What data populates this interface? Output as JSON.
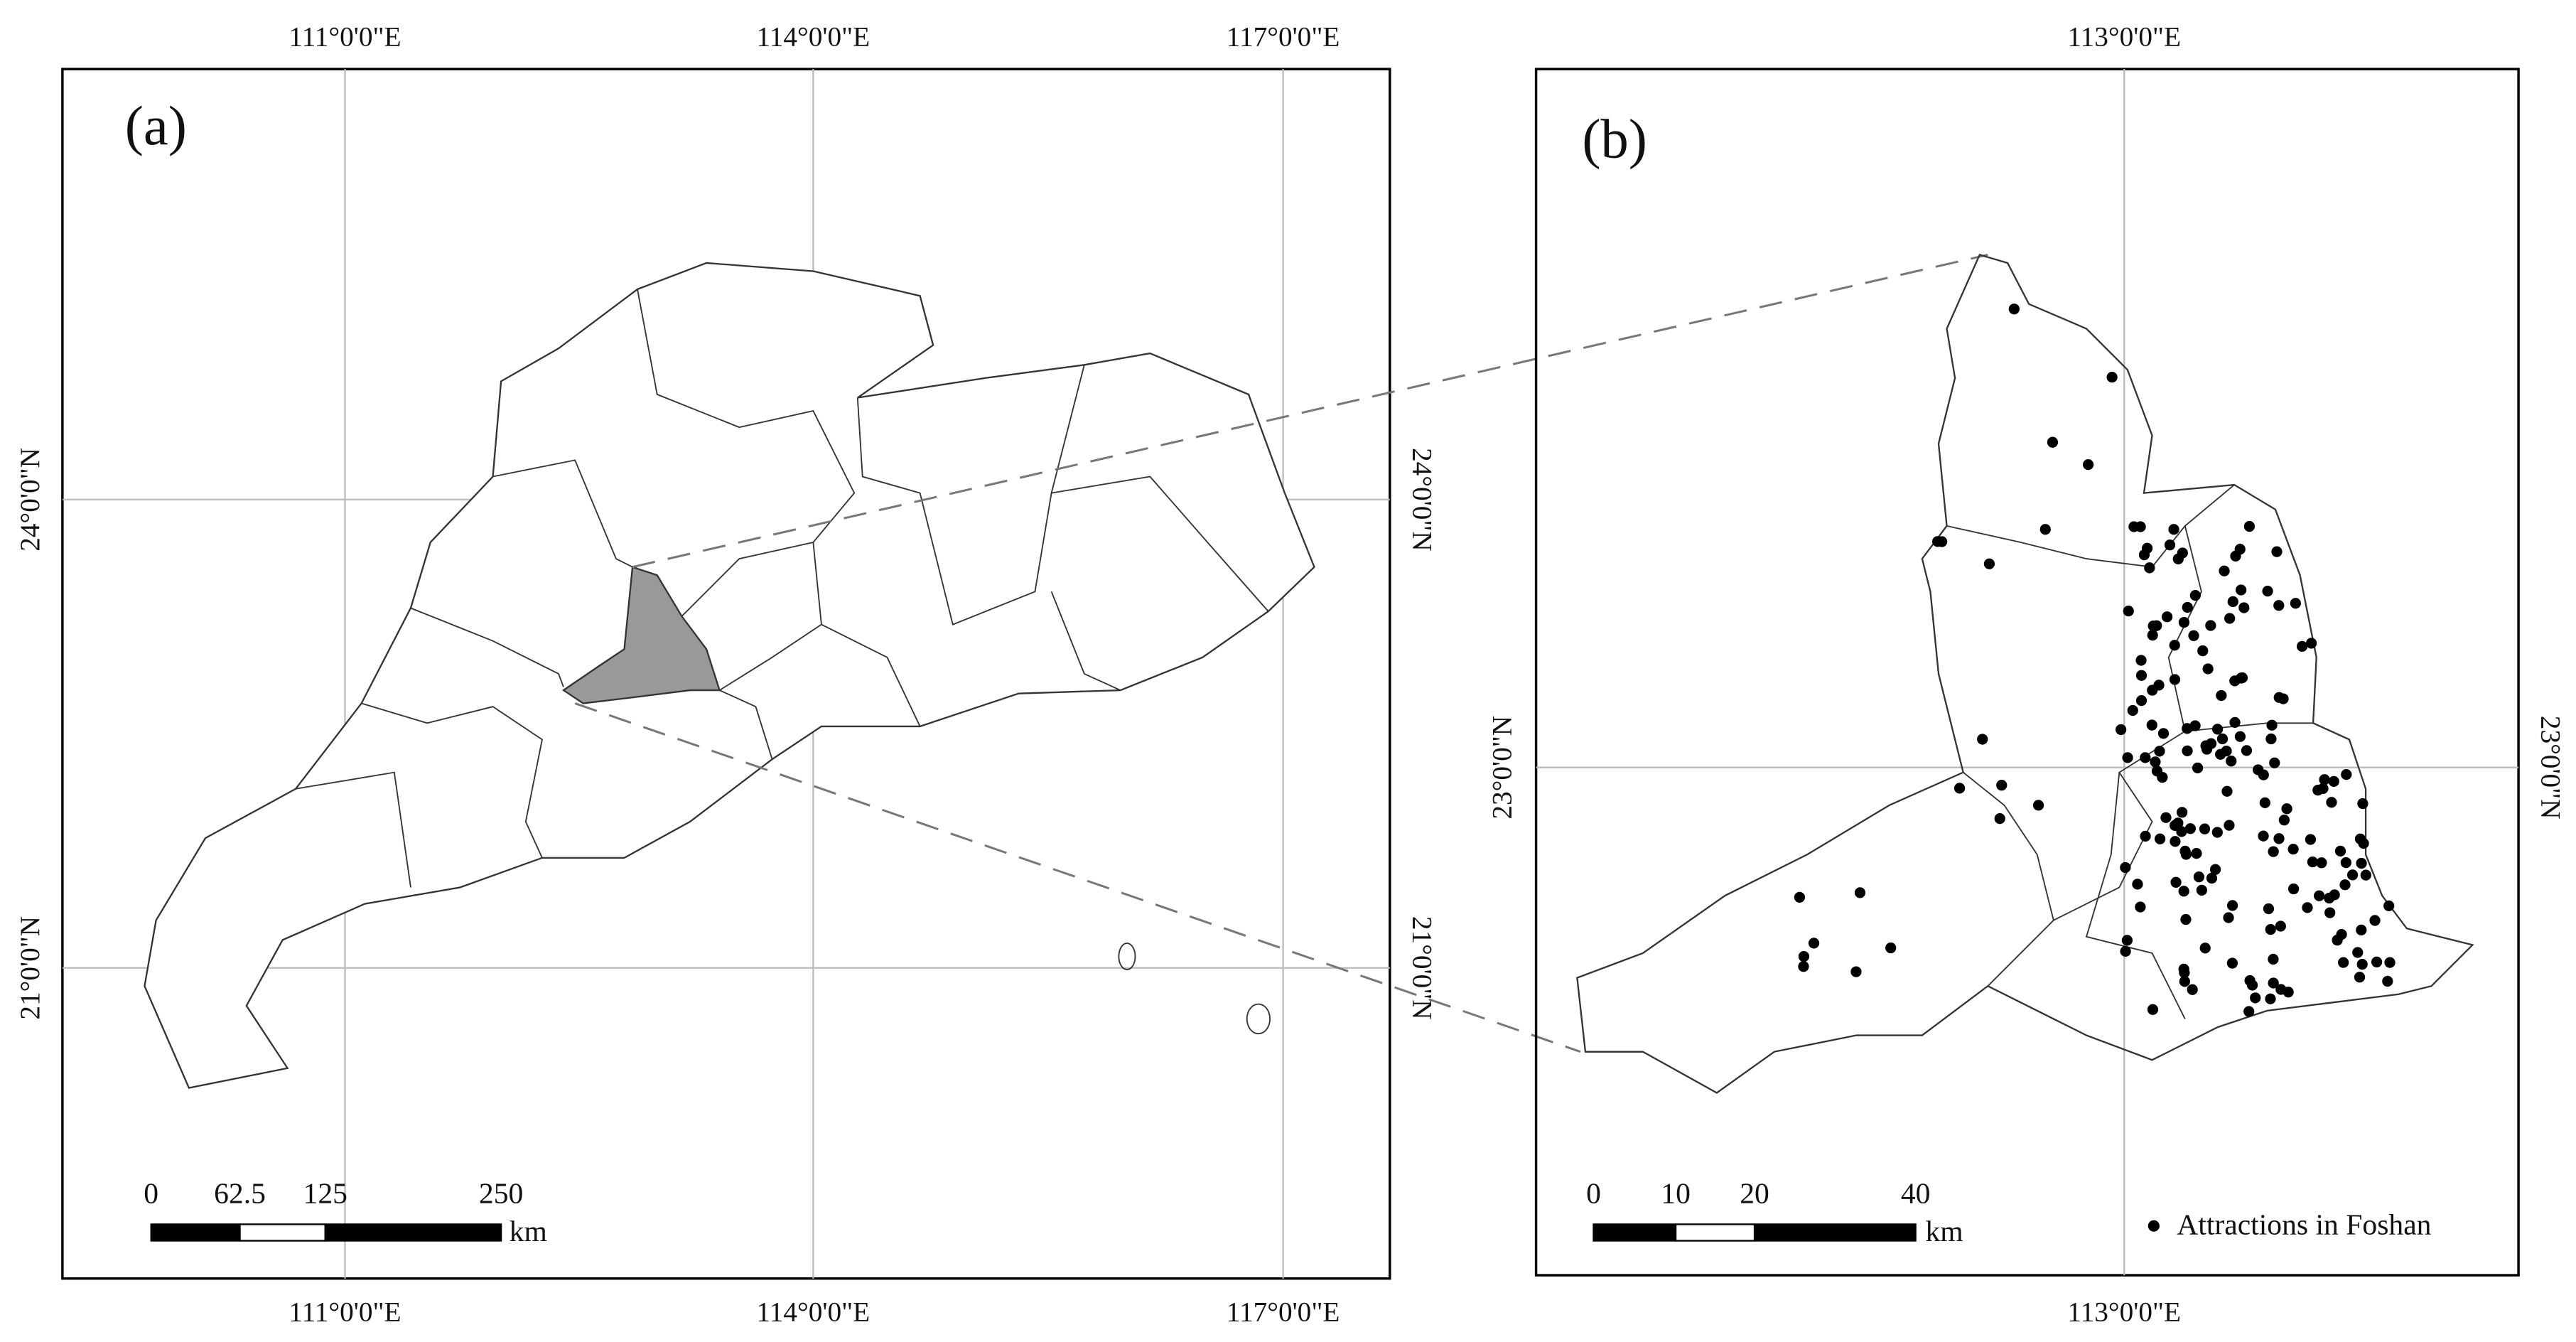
{
  "panel_a": {
    "label": "(a)",
    "top_labels": [
      "111°0'0\"E",
      "114°0'0\"E",
      "117°0'0\"E"
    ],
    "bottom_labels": [
      "111°0'0\"E",
      "114°0'0\"E",
      "117°0'0\"E"
    ],
    "left_labels": [
      "24°0'0\"N",
      "21°0'0\"N"
    ],
    "right_labels": [
      "24°0'0\"N",
      "21°0'0\"N"
    ],
    "scale_labels": [
      "0",
      "62.5",
      "125",
      "250"
    ],
    "scale_unit": "km"
  },
  "panel_b": {
    "label": "(b)",
    "top_labels": [
      "113°0'0\"E"
    ],
    "bottom_labels": [
      "113°0'0\"E"
    ],
    "left_labels": [
      "23°0'0\"N"
    ],
    "right_labels": [
      "23°0'0\"N"
    ],
    "scale_labels": [
      "0",
      "10",
      "20",
      "40"
    ],
    "scale_unit": "km",
    "legend": "Attractions in Foshan"
  }
}
